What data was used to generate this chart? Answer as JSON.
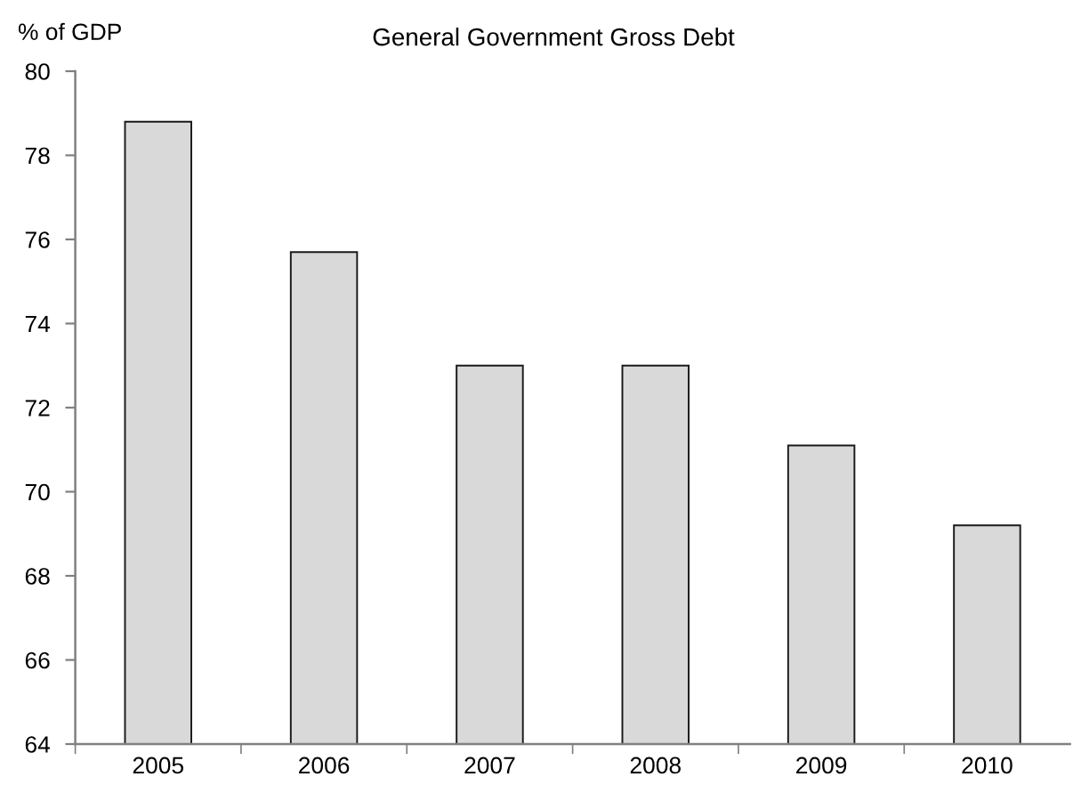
{
  "chart_data": {
    "type": "bar",
    "title": "General Government Gross Debt",
    "ylabel": "% of GDP",
    "categories": [
      "2005",
      "2006",
      "2007",
      "2008",
      "2009",
      "2010"
    ],
    "values": [
      78.8,
      75.7,
      73.0,
      73.0,
      71.1,
      69.2
    ],
    "color": "#d9d9d9",
    "ylim": [
      64,
      80
    ],
    "yticks": [
      64,
      66,
      68,
      70,
      72,
      74,
      76,
      78,
      80
    ]
  }
}
